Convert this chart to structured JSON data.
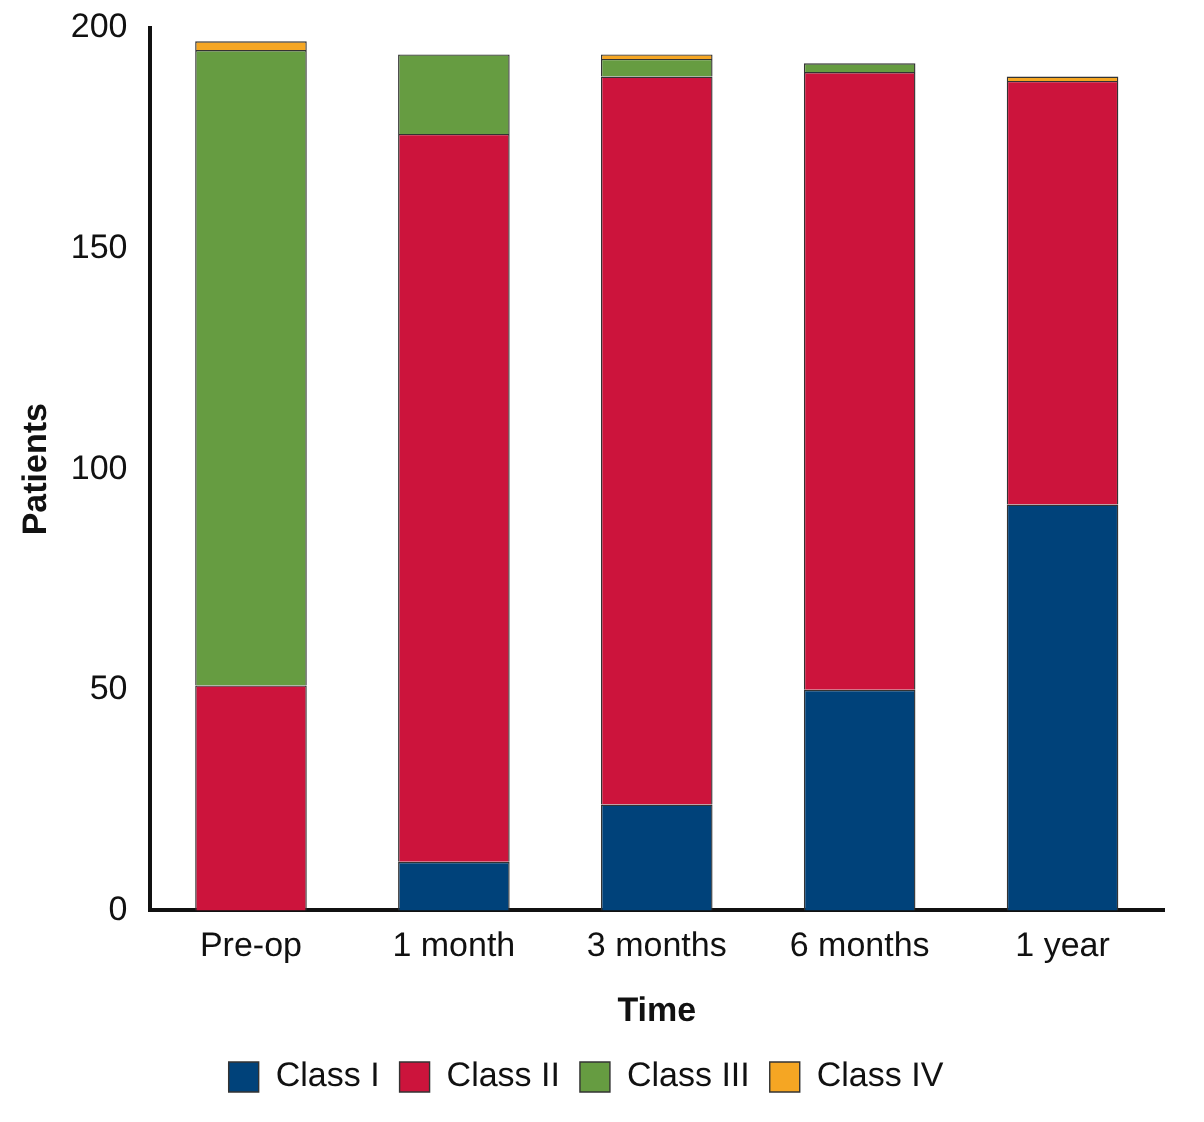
{
  "chart_data": {
    "type": "bar",
    "stacked": true,
    "xlabel": "Time",
    "ylabel": "Patients",
    "categories": [
      "Pre-op",
      "1 month",
      "3 months",
      "6 months",
      "1 year"
    ],
    "series": [
      {
        "name": "Class I",
        "color": "#00427a",
        "values": [
          0,
          11,
          24,
          50,
          92
        ]
      },
      {
        "name": "Class II",
        "color": "#cc143c",
        "values": [
          51,
          165,
          165,
          140,
          96
        ]
      },
      {
        "name": "Class III",
        "color": "#669c41",
        "values": [
          144,
          18,
          4,
          2,
          0
        ]
      },
      {
        "name": "Class IV",
        "color": "#f5a623",
        "values": [
          2,
          0,
          1,
          0,
          1
        ]
      }
    ],
    "ylim": [
      0,
      200
    ],
    "yticks": [
      0,
      50,
      100,
      150,
      200
    ],
    "grid": false,
    "legend": "bottom"
  }
}
